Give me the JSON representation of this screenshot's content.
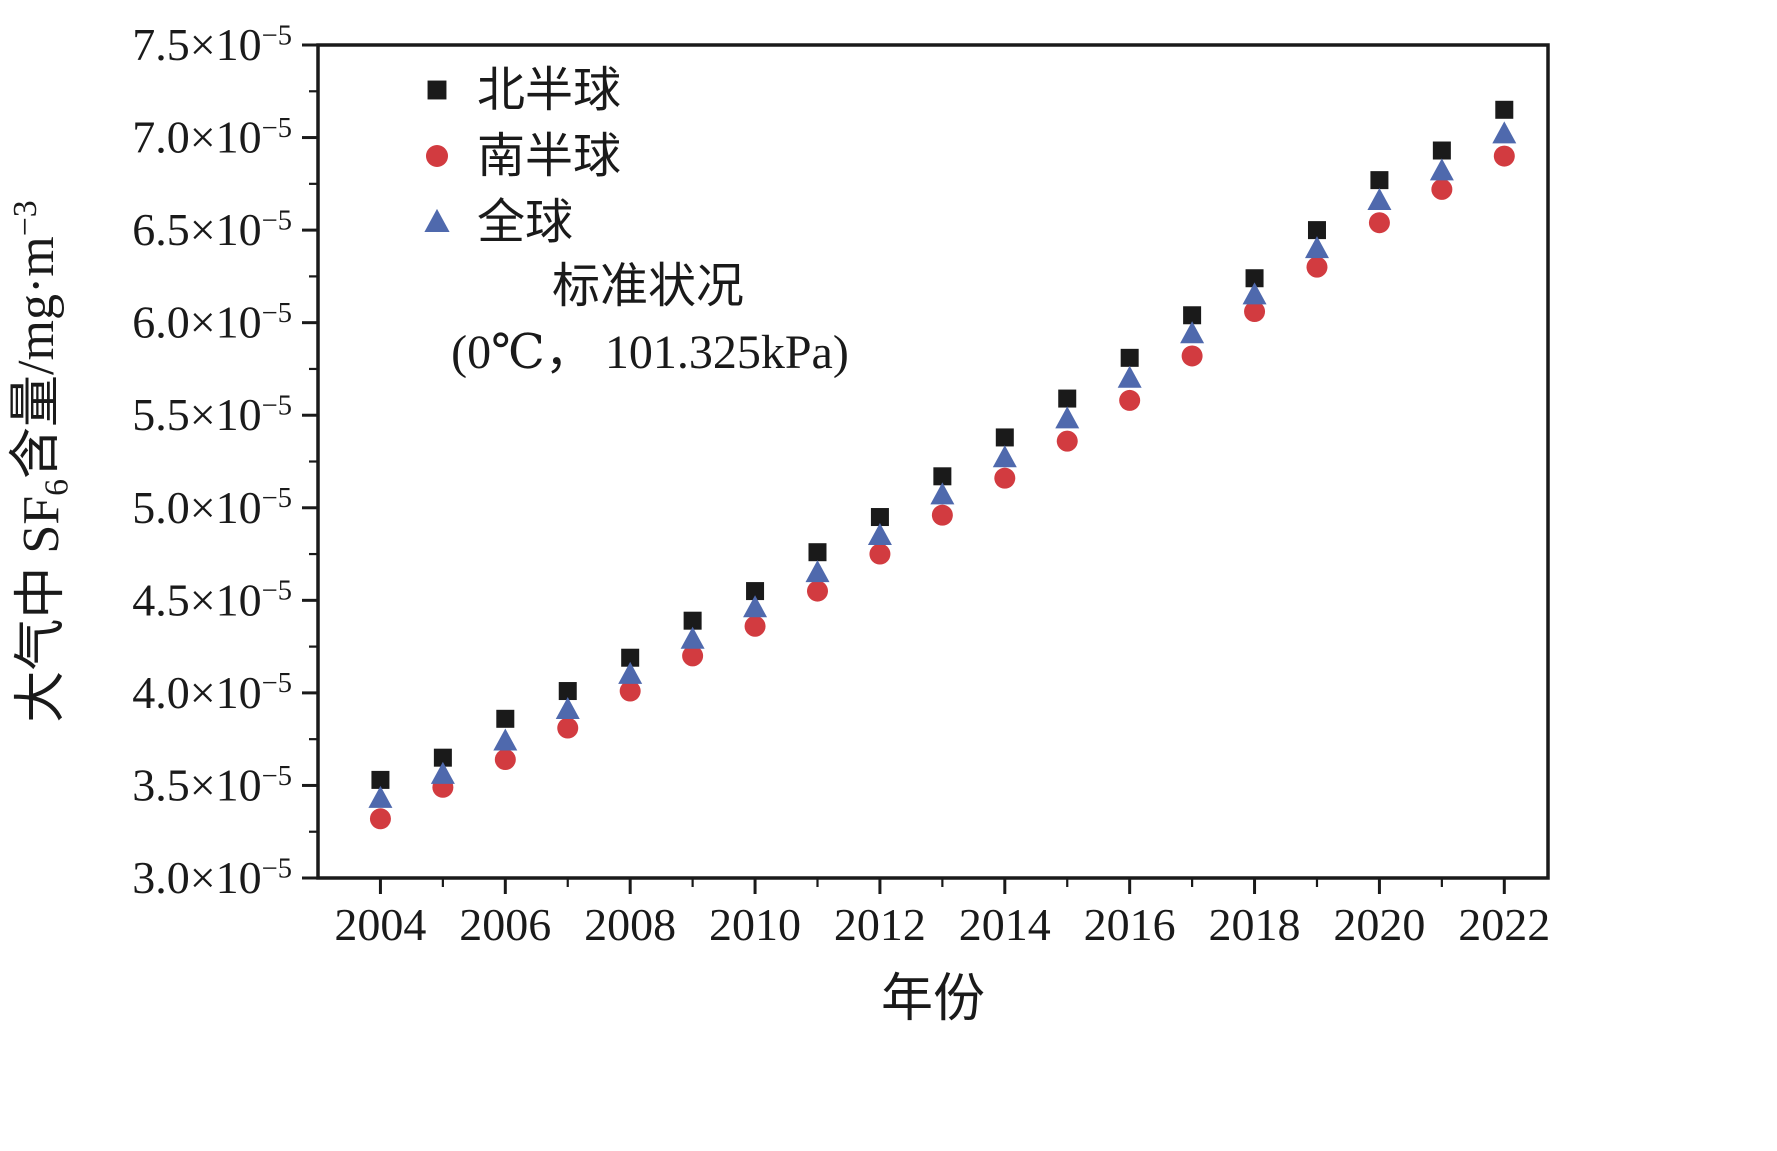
{
  "chart_data": {
    "type": "scatter",
    "title": "",
    "xlabel": "年份",
    "ylabel_prefix": "大气中 SF",
    "ylabel_sub": "6",
    "ylabel_mid": "含量/mg·m",
    "ylabel_sup": "−3",
    "annotation_line1": "标准状况",
    "annotation_line2": "(0℃， 101.325kPa)",
    "y_unit_exponent": "−5",
    "x": [
      2004,
      2005,
      2006,
      2007,
      2008,
      2009,
      2010,
      2011,
      2012,
      2013,
      2014,
      2015,
      2016,
      2017,
      2018,
      2019,
      2020,
      2021,
      2022
    ],
    "series": [
      {
        "name": "北半球",
        "marker": "square",
        "color": "#1a1a1a",
        "values_e5": [
          3.53,
          3.65,
          3.86,
          4.01,
          4.19,
          4.39,
          4.55,
          4.76,
          4.95,
          5.17,
          5.38,
          5.59,
          5.81,
          6.04,
          6.24,
          6.5,
          6.77,
          6.93,
          7.15
        ]
      },
      {
        "name": "南半球",
        "marker": "circle",
        "color": "#d23b40",
        "values_e5": [
          3.32,
          3.49,
          3.64,
          3.81,
          4.01,
          4.2,
          4.36,
          4.55,
          4.75,
          4.96,
          5.16,
          5.36,
          5.58,
          5.82,
          6.06,
          6.3,
          6.54,
          6.72,
          6.9
        ]
      },
      {
        "name": "全球",
        "marker": "triangle",
        "color": "#4f69ad",
        "values_e5": [
          3.43,
          3.56,
          3.74,
          3.91,
          4.1,
          4.29,
          4.46,
          4.65,
          4.85,
          5.07,
          5.27,
          5.48,
          5.7,
          5.94,
          6.15,
          6.4,
          6.66,
          6.82,
          7.02
        ]
      }
    ],
    "xlim": [
      2003.0,
      2022.7
    ],
    "ylim_e5": [
      3.0,
      7.5
    ],
    "xticks_major": [
      2004,
      2006,
      2008,
      2010,
      2012,
      2014,
      2016,
      2018,
      2020,
      2022
    ],
    "xticks_minor": [
      2005,
      2007,
      2009,
      2011,
      2013,
      2015,
      2017,
      2019,
      2021
    ],
    "yticks_major_e5": [
      3.0,
      3.5,
      4.0,
      4.5,
      5.0,
      5.5,
      6.0,
      6.5,
      7.0,
      7.5
    ],
    "yticks_minor_e5": [
      3.25,
      3.75,
      4.25,
      4.75,
      5.25,
      5.75,
      6.25,
      6.75,
      7.25
    ],
    "grid": false,
    "legend_position": "inside-top-left",
    "axis_color": "#1a1a1a"
  }
}
